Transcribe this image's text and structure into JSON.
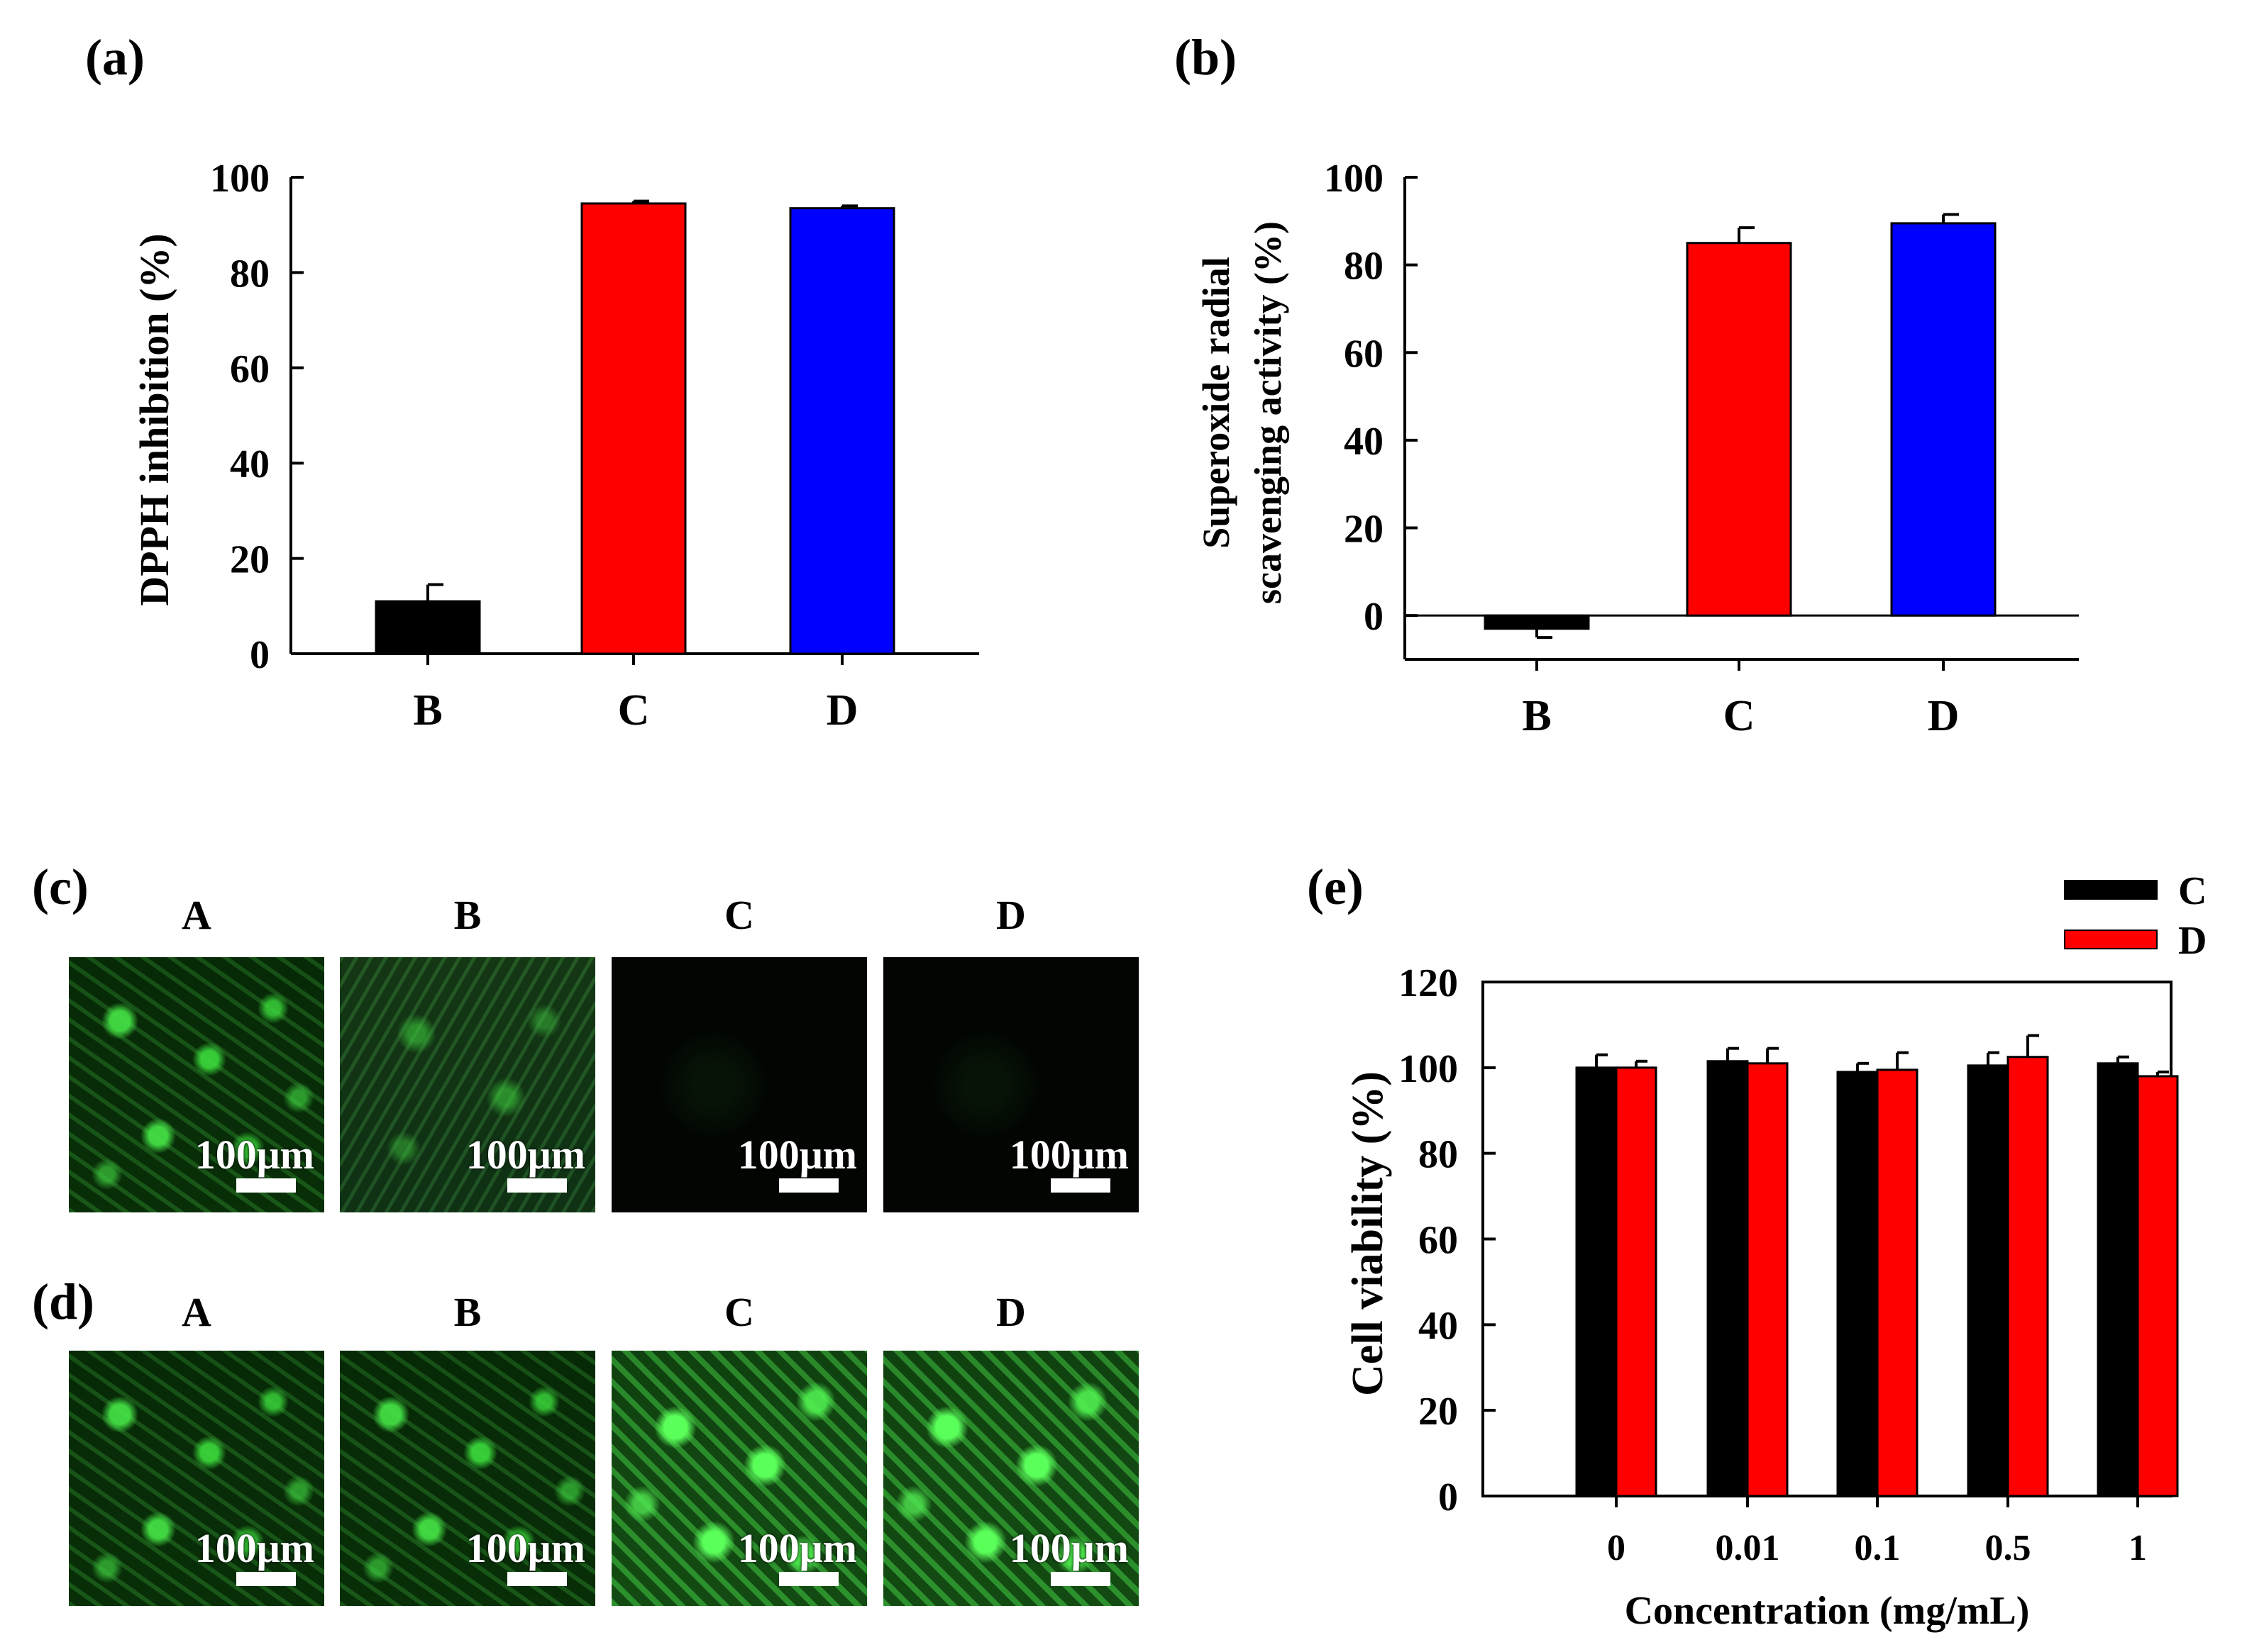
{
  "panels": {
    "a": {
      "label": "(a)",
      "chart_data": {
        "type": "bar",
        "categories": [
          "B",
          "C",
          "D"
        ],
        "values": [
          11,
          94.5,
          93.5
        ],
        "errors": [
          3.5,
          0.5,
          0.5
        ],
        "colors": [
          "#000000",
          "#ff0000",
          "#0000ff"
        ],
        "ylabel": "DPPH inhibition (%)",
        "ylim": [
          0,
          100
        ],
        "yticks": [
          0,
          20,
          40,
          60,
          80,
          100
        ]
      }
    },
    "b": {
      "label": "(b)",
      "chart_data": {
        "type": "bar",
        "categories": [
          "B",
          "C",
          "D"
        ],
        "values": [
          -3,
          85,
          89.5
        ],
        "errors": [
          2,
          3.5,
          2
        ],
        "colors": [
          "#000000",
          "#ff0000",
          "#0000ff"
        ],
        "ylabel_line1": "Superoxide radial",
        "ylabel_line2": "scavenging activity (%)",
        "ylim": [
          -10,
          100
        ],
        "yticks": [
          0,
          20,
          40,
          60,
          80,
          100
        ]
      }
    },
    "c": {
      "label": "(c)",
      "images": [
        {
          "title": "A",
          "scale": "100μm",
          "signal": "strong"
        },
        {
          "title": "B",
          "scale": "100μm",
          "signal": "medium"
        },
        {
          "title": "C",
          "scale": "100μm",
          "signal": "none"
        },
        {
          "title": "D",
          "scale": "100μm",
          "signal": "none"
        }
      ]
    },
    "d": {
      "label": "(d)",
      "images": [
        {
          "title": "A",
          "scale": "100μm",
          "signal": "strong"
        },
        {
          "title": "B",
          "scale": "100μm",
          "signal": "strong"
        },
        {
          "title": "C",
          "scale": "100μm",
          "signal": "bright"
        },
        {
          "title": "D",
          "scale": "100μm",
          "signal": "bright"
        }
      ]
    },
    "e": {
      "label": "(e)",
      "chart_data": {
        "type": "bar",
        "categories": [
          "0",
          "0.01",
          "0.1",
          "0.5",
          "1"
        ],
        "series": [
          {
            "name": "C",
            "color": "#000000",
            "values": [
              100,
              101.5,
              99,
              100.5,
              101
            ],
            "errors": [
              3,
              3,
              2,
              3,
              1.5
            ]
          },
          {
            "name": "D",
            "color": "#ff0000",
            "values": [
              100,
              101,
              99.5,
              102.5,
              98
            ],
            "errors": [
              1.5,
              3.5,
              4,
              5,
              1
            ]
          }
        ],
        "xlabel": "Concentration (mg/mL)",
        "ylabel": "Cell viability (%)",
        "ylim": [
          0,
          120
        ],
        "yticks": [
          0,
          20,
          40,
          60,
          80,
          100,
          120
        ],
        "legend": "top-right"
      }
    }
  }
}
